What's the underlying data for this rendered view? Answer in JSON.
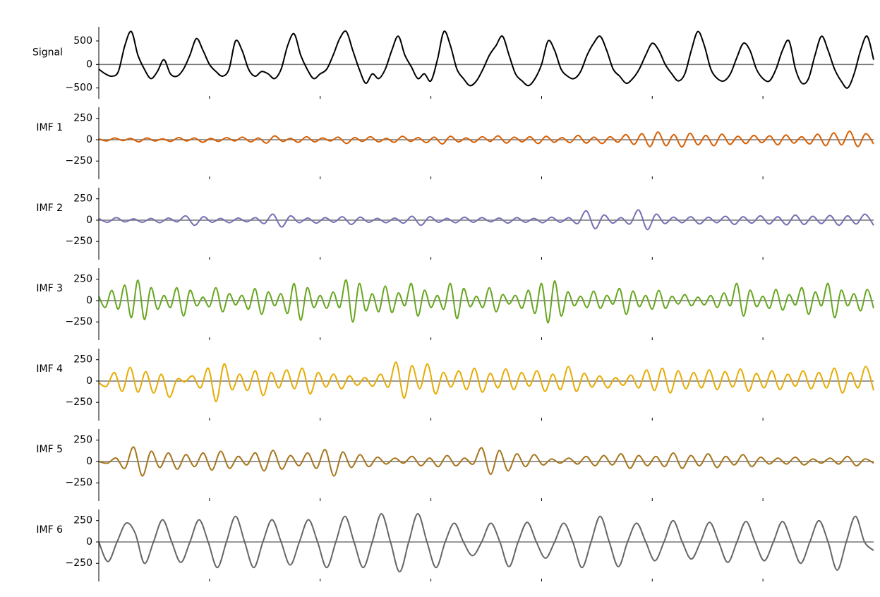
{
  "chart_data": [
    {
      "type": "line",
      "ylabel": "Signal",
      "color": "#000000",
      "xlim": [
        0,
        1400
      ],
      "xticks": [
        0,
        200,
        400,
        600,
        800,
        1000,
        1200
      ],
      "ylim": [
        -670,
        800
      ],
      "yticks": [
        -500,
        0,
        500
      ],
      "values": [
        -100,
        -200,
        -250,
        -150,
        400,
        700,
        200,
        -100,
        -300,
        -150,
        100,
        -200,
        -250,
        -100,
        200,
        550,
        300,
        0,
        -150,
        -250,
        -100,
        500,
        300,
        -100,
        -250,
        -150,
        -200,
        -300,
        -100,
        400,
        650,
        200,
        -100,
        -300,
        -200,
        -100,
        200,
        550,
        700,
        300,
        -100,
        -400,
        -200,
        -300,
        -100,
        300,
        600,
        200,
        -50,
        -300,
        -200,
        -350,
        100,
        700,
        400,
        -100,
        -300,
        -450,
        -350,
        -100,
        200,
        400,
        600,
        200,
        -200,
        -350,
        -450,
        -300,
        0,
        500,
        300,
        -100,
        -250,
        -300,
        -150,
        200,
        450,
        600,
        300,
        -100,
        -250,
        -400,
        -300,
        -100,
        200,
        450,
        300,
        0,
        -200,
        -350,
        -200,
        300,
        700,
        400,
        -100,
        -300,
        -350,
        -200,
        150,
        450,
        300,
        -100,
        -300,
        -350,
        -100,
        300,
        500,
        -100,
        -400,
        -300,
        200,
        600,
        300,
        -100,
        -350,
        -500,
        -200,
        300,
        600,
        100
      ]
    },
    {
      "type": "line",
      "ylabel": "IMF 1",
      "color": "#d95f02",
      "xlim": [
        0,
        1400
      ],
      "xticks": [
        0,
        200,
        400,
        600,
        800,
        1000,
        1200
      ],
      "ylim": [
        -430,
        380
      ],
      "yticks": [
        -250,
        0,
        250
      ],
      "values": [
        10,
        -15,
        20,
        -10,
        15,
        -25,
        20,
        -15,
        10,
        -20,
        25,
        -15,
        20,
        -30,
        15,
        -20,
        25,
        -15,
        30,
        -25,
        20,
        -40,
        45,
        -20,
        15,
        -30,
        35,
        -25,
        20,
        -15,
        30,
        -45,
        25,
        -20,
        35,
        -25,
        15,
        -30,
        40,
        -20,
        25,
        -35,
        30,
        -50,
        40,
        -25,
        20,
        -30,
        35,
        -20,
        45,
        -40,
        30,
        -25,
        35,
        -45,
        40,
        -30,
        25,
        -35,
        50,
        -40,
        30,
        -45,
        35,
        -30,
        60,
        -55,
        70,
        -80,
        90,
        -70,
        60,
        -85,
        75,
        -60,
        50,
        -70,
        65,
        -55,
        40,
        -45,
        50,
        -35,
        45,
        -60,
        55,
        -40,
        35,
        -50,
        65,
        -70,
        80,
        -60,
        100,
        -80,
        70,
        -50
      ]
    },
    {
      "type": "line",
      "ylabel": "IMF 2",
      "color": "#7570b3",
      "xlim": [
        0,
        1400
      ],
      "xticks": [
        0,
        200,
        400,
        600,
        800,
        1000,
        1200
      ],
      "ylim": [
        -430,
        380
      ],
      "yticks": [
        -250,
        0,
        250
      ],
      "values": [
        20,
        -25,
        30,
        -20,
        15,
        -25,
        20,
        -30,
        25,
        -20,
        50,
        -60,
        40,
        -25,
        20,
        -30,
        25,
        -20,
        30,
        -40,
        70,
        -80,
        50,
        -30,
        25,
        -35,
        30,
        -25,
        40,
        -50,
        35,
        -25,
        20,
        -30,
        25,
        -35,
        45,
        -60,
        40,
        -25,
        20,
        -30,
        35,
        -25,
        30,
        -20,
        25,
        -35,
        30,
        -25,
        20,
        -30,
        35,
        -25,
        30,
        -40,
        110,
        -100,
        60,
        -35,
        30,
        -45,
        120,
        -110,
        70,
        -40,
        35,
        -30,
        40,
        -45,
        35,
        -30,
        45,
        -50,
        40,
        -35,
        50,
        -45,
        40,
        -55,
        60,
        -50,
        45,
        -40,
        55,
        -60,
        50,
        -45,
        70,
        -60
      ]
    },
    {
      "type": "line",
      "ylabel": "IMF 3",
      "color": "#66a61e",
      "xlim": [
        0,
        1400
      ],
      "xticks": [
        0,
        200,
        400,
        600,
        800,
        1000,
        1200
      ],
      "ylim": [
        -430,
        380
      ],
      "yticks": [
        -250,
        0,
        250
      ],
      "values": [
        50,
        -80,
        120,
        -100,
        180,
        -200,
        240,
        -220,
        150,
        -100,
        60,
        -80,
        150,
        -180,
        120,
        -60,
        40,
        -70,
        150,
        -130,
        80,
        -50,
        60,
        -100,
        140,
        -160,
        100,
        -60,
        80,
        -150,
        200,
        -230,
        150,
        -80,
        60,
        -90,
        100,
        -80,
        240,
        -250,
        200,
        -120,
        80,
        -130,
        170,
        -140,
        90,
        -60,
        200,
        -180,
        120,
        -80,
        60,
        -100,
        200,
        -210,
        140,
        -70,
        50,
        -80,
        150,
        -130,
        70,
        -40,
        60,
        -90,
        120,
        -150,
        200,
        -260,
        230,
        -180,
        100,
        -60,
        50,
        -80,
        110,
        -90,
        60,
        -40,
        140,
        -160,
        110,
        -70,
        60,
        -100,
        120,
        -90,
        50,
        -40,
        70,
        -60,
        40,
        -50,
        60,
        -80,
        90,
        -60,
        200,
        -180,
        120,
        -70,
        50,
        -90,
        130,
        -110,
        70,
        -50,
        150,
        -160,
        100,
        -60,
        200,
        -200,
        120,
        -60,
        80,
        -120,
        130,
        -90
      ]
    },
    {
      "type": "line",
      "ylabel": "IMF 4",
      "color": "#e6ab02",
      "xlim": [
        0,
        1400
      ],
      "xticks": [
        0,
        200,
        400,
        600,
        800,
        1000,
        1200
      ],
      "ylim": [
        -430,
        380
      ],
      "yticks": [
        -250,
        0,
        250
      ],
      "values": [
        -20,
        -60,
        100,
        -120,
        160,
        -130,
        110,
        -140,
        80,
        -190,
        20,
        -10,
        60,
        -80,
        150,
        -240,
        200,
        -100,
        80,
        -110,
        120,
        -170,
        100,
        -80,
        130,
        -90,
        150,
        -150,
        100,
        -70,
        80,
        -90,
        60,
        -50,
        40,
        -60,
        80,
        -70,
        220,
        -200,
        180,
        -90,
        200,
        -150,
        100,
        -70,
        120,
        -100,
        150,
        -130,
        90,
        -80,
        140,
        -100,
        100,
        -60,
        120,
        -120,
        80,
        -100,
        170,
        -120,
        90,
        -70,
        60,
        -80,
        40,
        -50,
        70,
        -80,
        130,
        -110,
        150,
        -140,
        120,
        -90,
        100,
        -80,
        130,
        -100,
        110,
        -70,
        140,
        -120,
        90,
        -80,
        120,
        -100,
        80,
        -60,
        120,
        -90,
        100,
        -80,
        150,
        -140,
        100,
        -80,
        170,
        -110
      ]
    },
    {
      "type": "line",
      "ylabel": "IMF 5",
      "color": "#a6761d",
      "xlim": [
        0,
        1400
      ],
      "xticks": [
        0,
        200,
        400,
        600,
        800,
        1000,
        1200
      ],
      "ylim": [
        -430,
        380
      ],
      "yticks": [
        -250,
        0,
        250
      ],
      "values": [
        0,
        -20,
        40,
        -80,
        170,
        -170,
        120,
        -70,
        100,
        -90,
        80,
        -60,
        100,
        -100,
        120,
        -80,
        60,
        -40,
        100,
        -110,
        130,
        -90,
        70,
        -50,
        100,
        -80,
        140,
        -170,
        110,
        -70,
        80,
        -60,
        50,
        -30,
        40,
        -20,
        60,
        -50,
        40,
        -60,
        70,
        -50,
        40,
        -30,
        160,
        -150,
        130,
        -110,
        90,
        -60,
        80,
        -40,
        30,
        -20,
        40,
        -30,
        60,
        -50,
        70,
        -40,
        90,
        -80,
        70,
        -50,
        60,
        -60,
        100,
        -80,
        70,
        -50,
        90,
        -70,
        60,
        -40,
        80,
        -60,
        50,
        -30,
        40,
        -30,
        50,
        -40,
        30,
        -20,
        40,
        -30,
        60,
        -50,
        30,
        -20
      ]
    },
    {
      "type": "line",
      "ylabel": "IMF 6",
      "color": "#666666",
      "xlim": [
        0,
        1400
      ],
      "xticks": [
        0,
        200,
        400,
        600,
        800,
        1000,
        1200
      ],
      "ylim": [
        -430,
        380
      ],
      "yticks": [
        -250,
        0,
        250
      ],
      "values": [
        0,
        -230,
        0,
        220,
        100,
        -250,
        0,
        260,
        0,
        -240,
        0,
        260,
        0,
        -300,
        0,
        300,
        0,
        -300,
        0,
        260,
        0,
        -270,
        0,
        260,
        0,
        -300,
        0,
        300,
        0,
        -300,
        0,
        330,
        0,
        -350,
        0,
        330,
        0,
        -300,
        0,
        220,
        0,
        -160,
        0,
        220,
        0,
        -290,
        0,
        230,
        0,
        -190,
        0,
        220,
        0,
        -300,
        0,
        300,
        0,
        -290,
        0,
        220,
        0,
        -220,
        0,
        250,
        0,
        -200,
        0,
        230,
        0,
        -240,
        0,
        240,
        0,
        -220,
        0,
        240,
        0,
        -250,
        0,
        250,
        0,
        -330,
        0,
        300,
        0,
        -100
      ]
    }
  ]
}
